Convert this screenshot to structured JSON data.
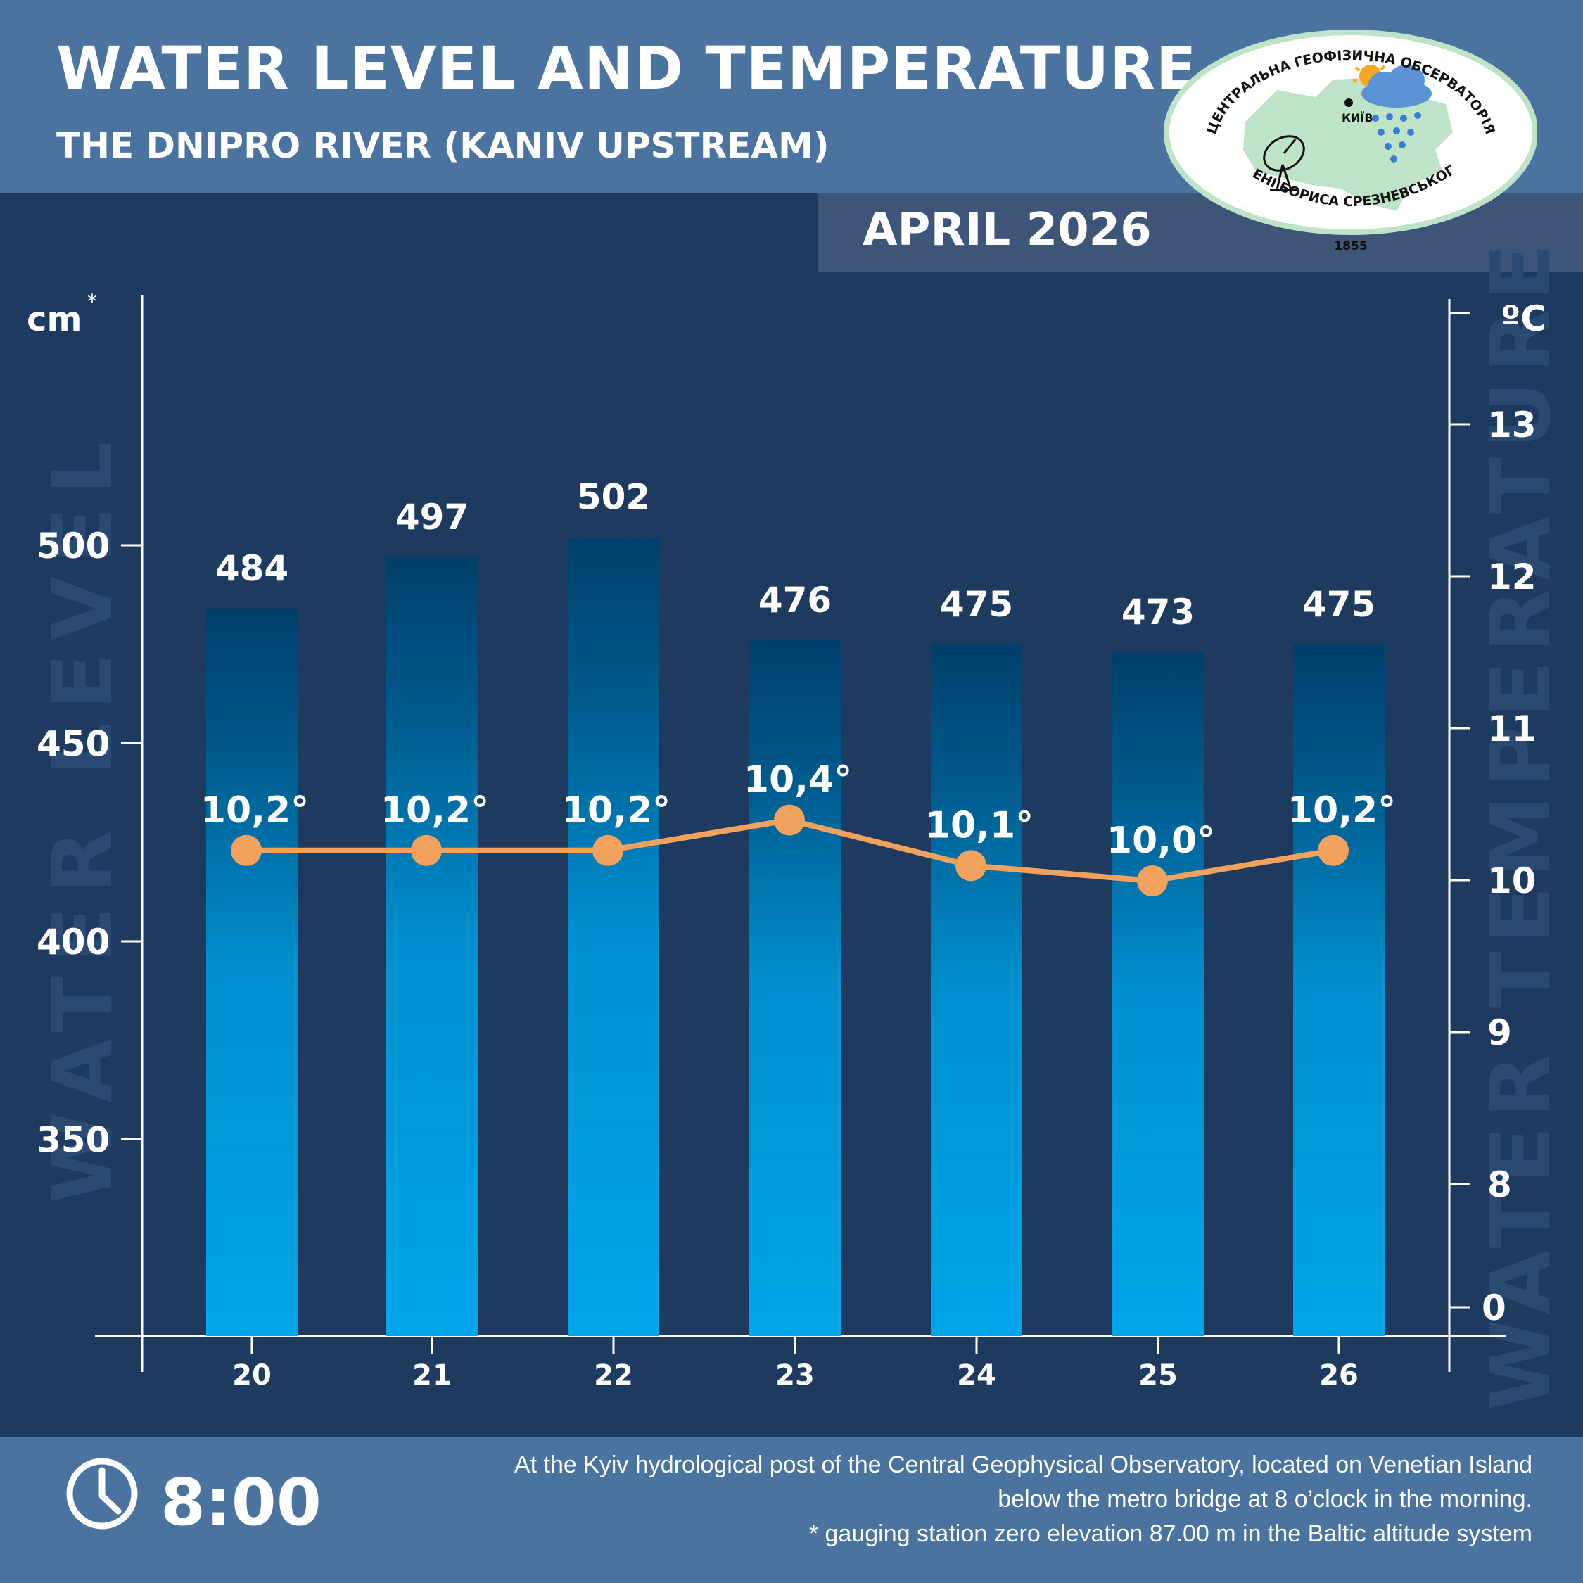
{
  "header": {
    "title": "WATER LEVEL AND TEMPERATURE",
    "subtitle": "THE DNIPRO RIVER (KANIV UPSTREAM)",
    "month": "APRIL 2026"
  },
  "logo": {
    "text_top": "ЦЕНТРАЛЬНА ГЕОФІЗИЧНА ОБСЕРВАТОРІЯ",
    "text_bottom": "ІМЕНІ БОРИСА СРЕЗНЕВСЬКОГО",
    "year": "1855",
    "city": "КИЇВ"
  },
  "footer": {
    "time": "8:00",
    "note_line1": "At the Kyiv hydrological post of the Central Geophysical Observatory, located on Venetian Island",
    "note_line2": "below the metro bridge  at 8 o’clock in the morning.",
    "note_line3": "* gauging station zero elevation 87.00 m in the Baltic altitude system"
  },
  "colors": {
    "background": "#1f3a5f",
    "header": "#4a73a0",
    "bar_top": "#005a8c",
    "bar_bottom": "#00a6e8",
    "temperature_line": "#f2a25c"
  },
  "chart_data": {
    "type": "bar",
    "categories": [
      "20",
      "21",
      "22",
      "23",
      "24",
      "25",
      "26"
    ],
    "series": [
      {
        "name": "WATER LEVEL",
        "type": "bar",
        "axis": "left",
        "values": [
          484,
          497,
          502,
          476,
          475,
          473,
          475
        ],
        "labels": [
          "484",
          "497",
          "502",
          "476",
          "475",
          "473",
          "475"
        ]
      },
      {
        "name": "WATER TEMPERATURE",
        "type": "line",
        "axis": "right",
        "values": [
          10.2,
          10.2,
          10.2,
          10.4,
          10.1,
          10.0,
          10.2
        ],
        "labels": [
          "10,2°",
          "10,2°",
          "10,2°",
          "10,4°",
          "10,1°",
          "10,0°",
          "10,2°"
        ]
      }
    ],
    "left_axis": {
      "unit": "cm",
      "unit_mark": "*",
      "ticks": [
        350,
        400,
        450,
        500
      ],
      "tick_labels": [
        "350",
        "400",
        "450",
        "500"
      ],
      "range": [
        296,
        546
      ]
    },
    "right_axis": {
      "unit": "ºC",
      "ticks": [
        0,
        8,
        9,
        10,
        11,
        12,
        13
      ],
      "tick_labels": [
        "0",
        "8",
        "9",
        "10",
        "11",
        "12",
        "13"
      ],
      "scale": "broken below 8"
    },
    "grid": false,
    "legend": "none"
  }
}
